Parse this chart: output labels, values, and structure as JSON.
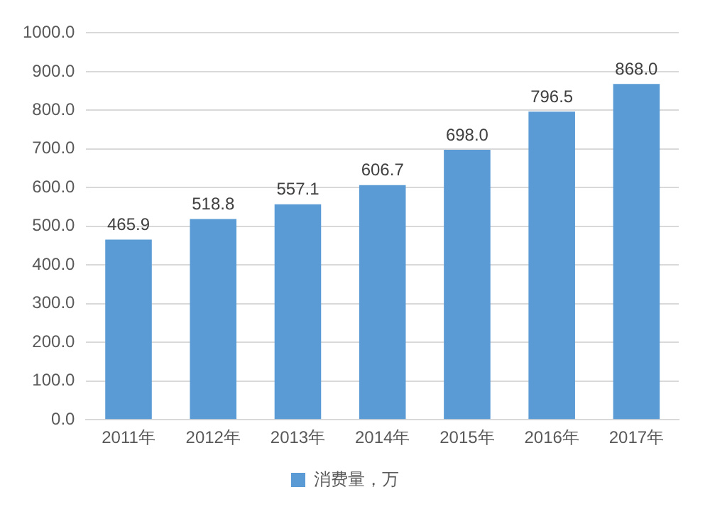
{
  "chart_data": {
    "type": "bar",
    "categories": [
      "2011年",
      "2012年",
      "2013年",
      "2014年",
      "2015年",
      "2016年",
      "2017年"
    ],
    "series": [
      {
        "name": "消费量，万",
        "color": "#5b9bd5",
        "values": [
          465.9,
          518.8,
          557.1,
          606.7,
          698.0,
          796.5,
          868.0
        ],
        "value_labels": [
          "465.9",
          "518.8",
          "557.1",
          "606.7",
          "698.0",
          "796.5",
          "868.0"
        ]
      }
    ],
    "ylim": [
      0,
      1000
    ],
    "yticks": [
      {
        "value": 0,
        "label": "0.0"
      },
      {
        "value": 100,
        "label": "100.0"
      },
      {
        "value": 200,
        "label": "200.0"
      },
      {
        "value": 300,
        "label": "300.0"
      },
      {
        "value": 400,
        "label": "400.0"
      },
      {
        "value": 500,
        "label": "500.0"
      },
      {
        "value": 600,
        "label": "600.0"
      },
      {
        "value": 700,
        "label": "700.0"
      },
      {
        "value": 800,
        "label": "800.0"
      },
      {
        "value": 900,
        "label": "900.0"
      },
      {
        "value": 1000,
        "label": "1000.0"
      }
    ],
    "grid": "y",
    "legend": "bottom"
  }
}
